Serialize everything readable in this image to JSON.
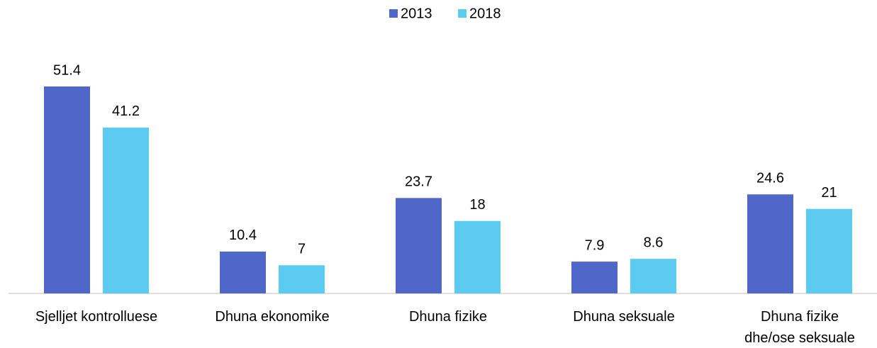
{
  "chart_data": {
    "type": "bar",
    "categories": [
      "Sjelljet kontrolluese",
      "Dhuna ekonomike",
      "Dhuna fizike",
      "Dhuna seksuale",
      "Dhuna fizike\ndhe/ose seksuale"
    ],
    "series": [
      {
        "name": "2013",
        "color": "#4f67c8",
        "values": [
          51.4,
          10.4,
          23.7,
          7.9,
          24.6
        ]
      },
      {
        "name": "2018",
        "color": "#5bcbf0",
        "values": [
          41.2,
          7,
          18,
          8.6,
          21
        ]
      }
    ],
    "legend": "top"
  }
}
